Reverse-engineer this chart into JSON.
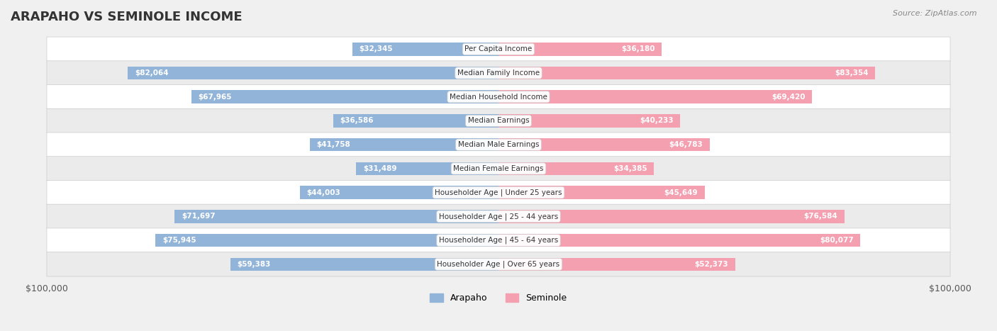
{
  "title": "ARAPAHO VS SEMINOLE INCOME",
  "source": "Source: ZipAtlas.com",
  "categories": [
    "Per Capita Income",
    "Median Family Income",
    "Median Household Income",
    "Median Earnings",
    "Median Male Earnings",
    "Median Female Earnings",
    "Householder Age | Under 25 years",
    "Householder Age | 25 - 44 years",
    "Householder Age | 45 - 64 years",
    "Householder Age | Over 65 years"
  ],
  "arapaho_values": [
    32345,
    82064,
    67965,
    36586,
    41758,
    31489,
    44003,
    71697,
    75945,
    59383
  ],
  "seminole_values": [
    36180,
    83354,
    69420,
    40233,
    46783,
    34385,
    45649,
    76584,
    80077,
    52373
  ],
  "arapaho_labels": [
    "$32,345",
    "$82,064",
    "$67,965",
    "$36,586",
    "$41,758",
    "$31,489",
    "$44,003",
    "$71,697",
    "$75,945",
    "$59,383"
  ],
  "seminole_labels": [
    "$36,180",
    "$83,354",
    "$69,420",
    "$40,233",
    "$46,783",
    "$34,385",
    "$45,649",
    "$76,584",
    "$80,077",
    "$52,373"
  ],
  "max_value": 100000,
  "arapaho_color": "#92b4d8",
  "arapaho_dark_color": "#5a8fc0",
  "seminole_color": "#f4a0b0",
  "seminole_dark_color": "#e8607a",
  "bg_color": "#f0f0f0",
  "row_bg_color": "#f8f8f8",
  "bar_height": 0.55,
  "legend_arapaho": "Arapaho",
  "legend_seminole": "Seminole"
}
